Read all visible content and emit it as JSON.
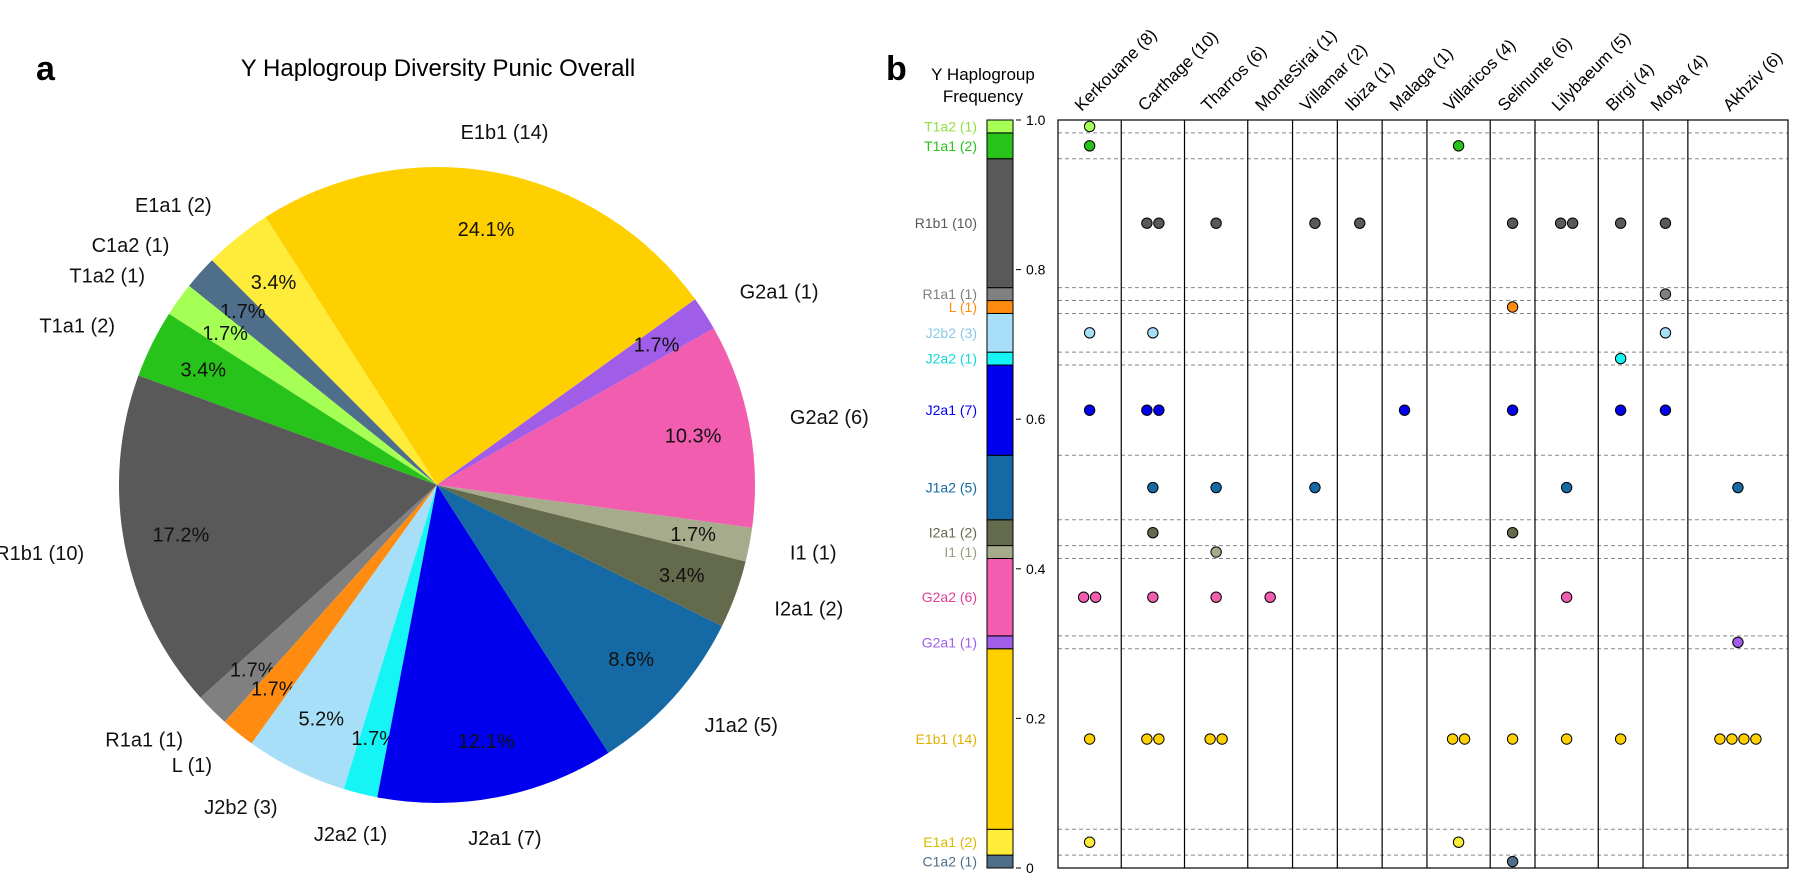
{
  "panel_a_letter": "a",
  "panel_b_letter": "b",
  "chart_data": [
    {
      "type": "pie",
      "title": "Y Haplogroup Diversity Punic Overall",
      "slices": [
        {
          "label": "E1b1 (14)",
          "pct_label": "24.1%",
          "value": 14,
          "color": "#ffd000"
        },
        {
          "label": "E1a1 (2)",
          "pct_label": "3.4%",
          "value": 2,
          "color": "#ffeb3a"
        },
        {
          "label": "C1a2 (1)",
          "pct_label": "1.7%",
          "value": 1,
          "color": "#4e6e8a"
        },
        {
          "label": "T1a2 (1)",
          "pct_label": "1.7%",
          "value": 1,
          "color": "#a6ff55"
        },
        {
          "label": "T1a1 (2)",
          "pct_label": "3.4%",
          "value": 2,
          "color": "#27c21a"
        },
        {
          "label": "R1b1 (10)",
          "pct_label": "17.2%",
          "value": 10,
          "color": "#595959"
        },
        {
          "label": "R1a1 (1)",
          "pct_label": "1.7%",
          "value": 1,
          "color": "#808080"
        },
        {
          "label": "L (1)",
          "pct_label": "1.7%",
          "value": 1,
          "color": "#ff8c10"
        },
        {
          "label": "J2b2 (3)",
          "pct_label": "5.2%",
          "value": 3,
          "color": "#a8dff8"
        },
        {
          "label": "J2a2 (1)",
          "pct_label": "1.7%",
          "value": 1,
          "color": "#16f5f5"
        },
        {
          "label": "J2a1 (7)",
          "pct_label": "12.1%",
          "value": 7,
          "color": "#0000ee"
        },
        {
          "label": "J1a2 (5)",
          "pct_label": "8.6%",
          "value": 5,
          "color": "#1569a4"
        },
        {
          "label": "I2a1 (2)",
          "pct_label": "3.4%",
          "value": 2,
          "color": "#646b4d"
        },
        {
          "label": "I1 (1)",
          "pct_label": "1.7%",
          "value": 1,
          "color": "#a6ab8c"
        },
        {
          "label": "G2a2 (6)",
          "pct_label": "10.3%",
          "value": 6,
          "color": "#f25db0"
        },
        {
          "label": "G2a1 (1)",
          "pct_label": "1.7%",
          "value": 1,
          "color": "#a05ee8"
        }
      ]
    },
    {
      "type": "stacked-bar-dotplot",
      "title_lines": [
        "Y Haplogroup",
        "Frequency"
      ],
      "ylim": [
        0,
        1
      ],
      "yticks": [
        {
          "value": 0,
          "label": "0"
        },
        {
          "value": 0.2,
          "label": "0.2"
        },
        {
          "value": 0.4,
          "label": "0.4"
        },
        {
          "value": 0.6,
          "label": "0.6"
        },
        {
          "value": 0.8,
          "label": "0.8"
        },
        {
          "value": 1.0,
          "label": "1.0"
        }
      ],
      "haplogroups": [
        {
          "label": "C1a2 (1)",
          "count": 1,
          "color": "#4e6e8a",
          "text_color": "#4e6e8a"
        },
        {
          "label": "E1a1 (2)",
          "count": 2,
          "color": "#ffeb3a",
          "text_color": "#d8b800"
        },
        {
          "label": "E1b1 (14)",
          "count": 14,
          "color": "#ffd000",
          "text_color": "#e0b000"
        },
        {
          "label": "G2a1 (1)",
          "count": 1,
          "color": "#a05ee8",
          "text_color": "#a05ee8"
        },
        {
          "label": "G2a2 (6)",
          "count": 6,
          "color": "#f25db0",
          "text_color": "#e0409a"
        },
        {
          "label": "I1 (1)",
          "count": 1,
          "color": "#a6ab8c",
          "text_color": "#9a9f80"
        },
        {
          "label": "I2a1 (2)",
          "count": 2,
          "color": "#646b4d",
          "text_color": "#646b4d"
        },
        {
          "label": "J1a2 (5)",
          "count": 5,
          "color": "#1569a4",
          "text_color": "#1569a4"
        },
        {
          "label": "J2a1 (7)",
          "count": 7,
          "color": "#0000ee",
          "text_color": "#0000ee"
        },
        {
          "label": "J2a2 (1)",
          "count": 1,
          "color": "#16f5f5",
          "text_color": "#10d8d8"
        },
        {
          "label": "J2b2 (3)",
          "count": 3,
          "color": "#a8dff8",
          "text_color": "#88c8e8"
        },
        {
          "label": "L (1)",
          "count": 1,
          "color": "#ff8c10",
          "text_color": "#ff8c10"
        },
        {
          "label": "R1a1 (1)",
          "count": 1,
          "color": "#808080",
          "text_color": "#808080"
        },
        {
          "label": "R1b1 (10)",
          "count": 10,
          "color": "#595959",
          "text_color": "#595959"
        },
        {
          "label": "T1a1 (2)",
          "count": 2,
          "color": "#27c21a",
          "text_color": "#27c21a"
        },
        {
          "label": "T1a2 (1)",
          "count": 1,
          "color": "#a6ff55",
          "text_color": "#8ee040"
        }
      ],
      "sites": [
        {
          "label": "Kerkouane (8)",
          "dots": {
            "T1a2 (1)": 1,
            "T1a1 (2)": 1,
            "J2b2 (3)": 1,
            "J2a1 (7)": 1,
            "G2a2 (6)": 2,
            "E1b1 (14)": 1,
            "E1a1 (2)": 1
          }
        },
        {
          "label": "Carthage (10)",
          "dots": {
            "R1b1 (10)": 2,
            "J2b2 (3)": 1,
            "J2a1 (7)": 2,
            "J1a2 (5)": 1,
            "I2a1 (2)": 1,
            "G2a2 (6)": 1,
            "E1b1 (14)": 2
          }
        },
        {
          "label": "Tharros (6)",
          "dots": {
            "R1b1 (10)": 1,
            "J1a2 (5)": 1,
            "I1 (1)": 1,
            "G2a2 (6)": 1,
            "E1b1 (14)": 2
          }
        },
        {
          "label": "MonteSirai (1)",
          "dots": {
            "G2a2 (6)": 1
          }
        },
        {
          "label": "Villamar (2)",
          "dots": {
            "R1b1 (10)": 1,
            "J1a2 (5)": 1
          }
        },
        {
          "label": "Ibiza (1)",
          "dots": {
            "R1b1 (10)": 1
          }
        },
        {
          "label": "Malaga (1)",
          "dots": {
            "J2a1 (7)": 1
          }
        },
        {
          "label": "Villaricos (4)",
          "dots": {
            "T1a1 (2)": 1,
            "E1b1 (14)": 2,
            "E1a1 (2)": 1
          }
        },
        {
          "label": "Selinunte (6)",
          "dots": {
            "R1b1 (10)": 1,
            "L (1)": 1,
            "J2a1 (7)": 1,
            "I2a1 (2)": 1,
            "E1b1 (14)": 1,
            "C1a2 (1)": 1
          }
        },
        {
          "label": "Lilybaeum (5)",
          "dots": {
            "R1b1 (10)": 2,
            "J1a2 (5)": 1,
            "G2a2 (6)": 1,
            "E1b1 (14)": 1
          }
        },
        {
          "label": "Birgi (4)",
          "dots": {
            "R1b1 (10)": 1,
            "J2a2 (1)": 1,
            "J2a1 (7)": 1,
            "E1b1 (14)": 1
          }
        },
        {
          "label": "Motya (4)",
          "dots": {
            "R1b1 (10)": 1,
            "R1a1 (1)": 1,
            "J2b2 (3)": 1,
            "J2a1 (7)": 1
          }
        },
        {
          "label": "Akhziv (6)",
          "dots": {
            "J1a2 (5)": 1,
            "G2a1 (1)": 1,
            "E1b1 (14)": 4
          }
        }
      ]
    }
  ]
}
